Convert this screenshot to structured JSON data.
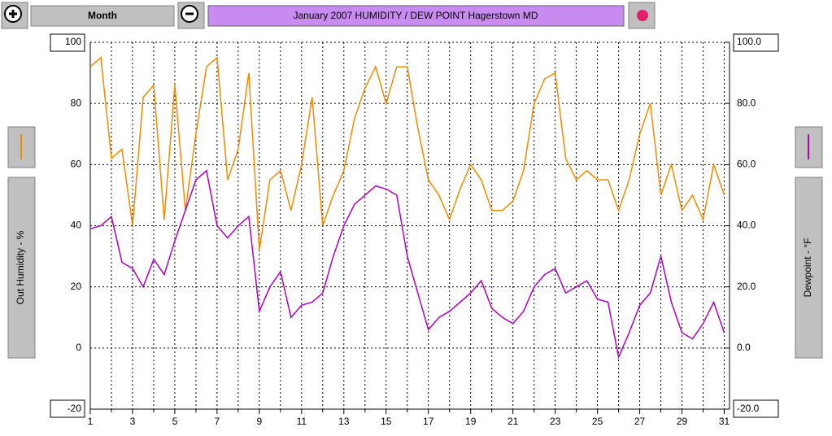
{
  "chart_data": {
    "type": "line",
    "title": "January 2007  HUMIDITY / DEW POINT  Hagerstown MD",
    "period": "Month",
    "y_label": "Out Humidity - %",
    "y2_label": "Dewpoint - °F",
    "x": [
      1,
      1.5,
      2,
      2.5,
      3,
      3.5,
      4,
      4.5,
      5,
      5.5,
      6,
      6.5,
      7,
      7.5,
      8,
      8.5,
      9,
      9.5,
      10,
      10.5,
      11,
      11.5,
      12,
      12.5,
      13,
      13.5,
      14,
      14.5,
      15,
      15.5,
      16,
      16.5,
      17,
      17.5,
      18,
      18.5,
      19,
      19.5,
      20,
      20.5,
      21,
      21.5,
      22,
      22.5,
      23,
      23.5,
      24,
      24.5,
      25,
      25.5,
      26,
      26.5,
      27,
      27.5,
      28,
      28.5,
      29,
      29.5,
      30,
      30.5,
      31
    ],
    "xlim": [
      1,
      31.25
    ],
    "xticks": [
      1,
      3,
      5,
      7,
      9,
      11,
      13,
      15,
      17,
      19,
      21,
      23,
      25,
      27,
      29,
      31
    ],
    "xminor": [
      2,
      4,
      6,
      8,
      10,
      12,
      14,
      16,
      18,
      20,
      22,
      24,
      26,
      28,
      30
    ],
    "ylim": [
      -20,
      100
    ],
    "yticks": [
      100,
      80,
      60,
      40,
      20,
      0,
      -20
    ],
    "y2lim": [
      -20,
      100
    ],
    "y2ticks": [
      {
        "value": 100,
        "label": "100.0"
      },
      {
        "value": 80,
        "label": "80.0"
      },
      {
        "value": 60,
        "label": "60.0"
      },
      {
        "value": 40,
        "label": "40.0"
      },
      {
        "value": 20,
        "label": "20.0"
      },
      {
        "value": 0,
        "label": "0.0"
      },
      {
        "value": -20,
        "label": "-20.0"
      }
    ],
    "grid": true,
    "series": [
      {
        "color": "#f08c00",
        "axis": "y",
        "values": [
          92,
          95,
          62,
          65,
          40,
          82,
          86,
          42,
          86,
          45,
          70,
          92,
          95,
          55,
          65,
          90,
          32,
          55,
          58,
          45,
          60,
          82,
          40,
          50,
          58,
          75,
          85,
          92,
          80,
          92,
          92,
          72,
          55,
          50,
          42,
          52,
          60,
          55,
          45,
          45,
          48,
          58,
          80,
          88,
          90,
          62,
          55,
          58,
          55,
          55,
          45,
          55,
          70,
          80,
          50,
          60,
          45,
          50,
          42,
          60,
          50
        ]
      },
      {
        "color": "#b000c0",
        "axis": "y2",
        "values": [
          39,
          40,
          43,
          28,
          26,
          20,
          29,
          24,
          35,
          45,
          55,
          58,
          40,
          36,
          40,
          43,
          12,
          20,
          25,
          10,
          14,
          15,
          18,
          30,
          40,
          47,
          50,
          53,
          52,
          50,
          30,
          18,
          6,
          10,
          12,
          15,
          18,
          22,
          13,
          10,
          8,
          12,
          20,
          24,
          26,
          18,
          20,
          22,
          16,
          15,
          -3,
          5,
          14,
          18,
          30,
          15,
          5,
          3,
          8,
          15,
          5
        ]
      }
    ]
  }
}
